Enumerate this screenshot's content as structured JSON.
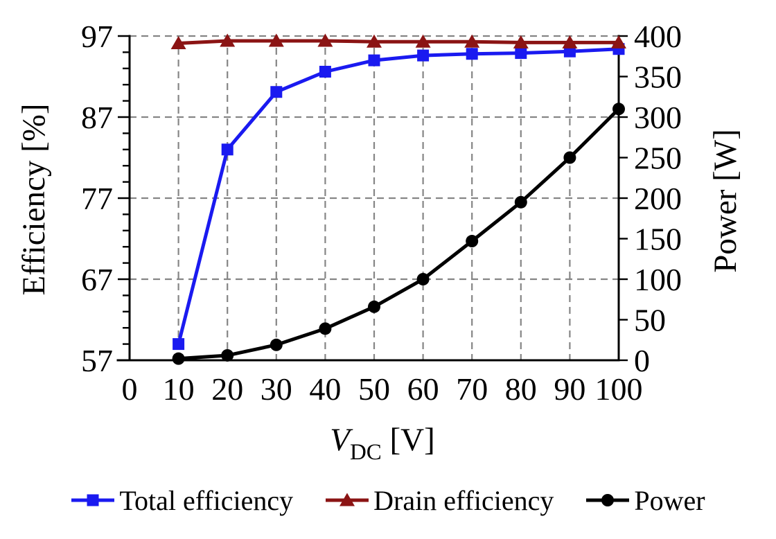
{
  "chart_data": {
    "type": "line",
    "title": "",
    "x": [
      10,
      20,
      30,
      40,
      50,
      60,
      70,
      80,
      90,
      100
    ],
    "series": [
      {
        "name": "Total efficiency",
        "axis": "left",
        "color": "#1a1af0",
        "marker": "square",
        "values": [
          59.0,
          83.0,
          90.1,
          92.6,
          94.0,
          94.6,
          94.8,
          94.9,
          95.1,
          95.4
        ]
      },
      {
        "name": "Drain efficiency",
        "axis": "left",
        "color": "#8b1414",
        "marker": "triangle",
        "values": [
          96.1,
          96.4,
          96.4,
          96.4,
          96.3,
          96.3,
          96.3,
          96.2,
          96.2,
          96.2
        ]
      },
      {
        "name": "Power",
        "axis": "right",
        "color": "#000000",
        "marker": "circle",
        "values": [
          2,
          6,
          19,
          39,
          66,
          100,
          147,
          195,
          250,
          310
        ]
      }
    ],
    "x_axis": {
      "label_main": "V",
      "label_sub": "DC",
      "label_rest": " [V]",
      "ticks": [
        0,
        10,
        20,
        30,
        40,
        50,
        60,
        70,
        80,
        90,
        100
      ],
      "range": [
        0,
        100
      ]
    },
    "y_left": {
      "label": "Efficiency [%]",
      "ticks": [
        57,
        67,
        77,
        87,
        97
      ],
      "minor_step": 2,
      "range": [
        57,
        97
      ],
      "gridlines": [
        67,
        77,
        87,
        97
      ]
    },
    "y_right": {
      "label": "Power [W]",
      "ticks": [
        0,
        50,
        100,
        150,
        200,
        250,
        300,
        350,
        400
      ],
      "range": [
        0,
        400
      ]
    },
    "grid": {
      "color": "#858585",
      "style": "dashed"
    },
    "legend_position": "bottom"
  }
}
